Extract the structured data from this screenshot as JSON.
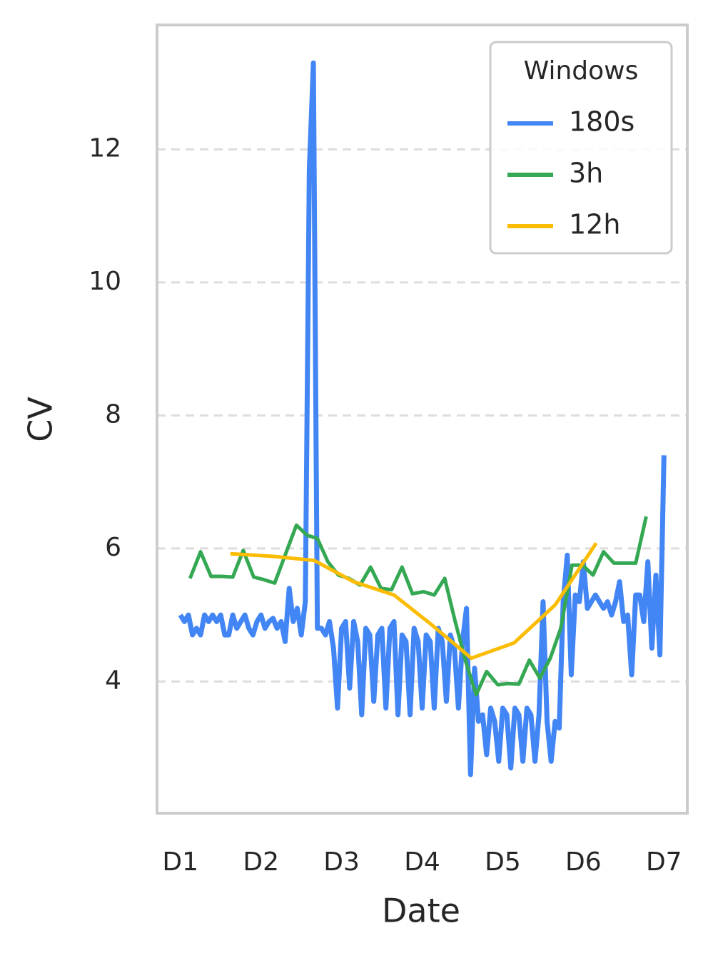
{
  "chart_data": {
    "type": "line",
    "xlabel": "Date",
    "ylabel": "CV",
    "legend_title": "Windows",
    "legend": "upper right",
    "grid": true,
    "xlim": [
      0.71,
      7.29
    ],
    "ylim": [
      2.02,
      13.87
    ],
    "xticks": [
      {
        "value": 1,
        "label": "D1"
      },
      {
        "value": 2,
        "label": "D2"
      },
      {
        "value": 3,
        "label": "D3"
      },
      {
        "value": 4,
        "label": "D4"
      },
      {
        "value": 5,
        "label": "D5"
      },
      {
        "value": 6,
        "label": "D6"
      },
      {
        "value": 7,
        "label": "D7"
      }
    ],
    "yticks": [
      4,
      6,
      8,
      10,
      12
    ],
    "series": [
      {
        "name": "180s",
        "color": "#4285f4",
        "width": 7,
        "x": [
          1.0,
          1.05,
          1.1,
          1.15,
          1.2,
          1.25,
          1.3,
          1.35,
          1.4,
          1.45,
          1.5,
          1.55,
          1.6,
          1.65,
          1.7,
          1.75,
          1.8,
          1.85,
          1.9,
          1.95,
          2.0,
          2.05,
          2.1,
          2.15,
          2.2,
          2.25,
          2.3,
          2.35,
          2.4,
          2.45,
          2.5,
          2.55,
          2.6,
          2.65,
          2.7,
          2.75,
          2.8,
          2.85,
          2.9,
          2.95,
          3.0,
          3.05,
          3.1,
          3.15,
          3.2,
          3.25,
          3.3,
          3.35,
          3.4,
          3.45,
          3.5,
          3.55,
          3.6,
          3.65,
          3.7,
          3.75,
          3.8,
          3.85,
          3.9,
          3.95,
          4.0,
          4.05,
          4.1,
          4.15,
          4.2,
          4.25,
          4.3,
          4.35,
          4.4,
          4.45,
          4.5,
          4.55,
          4.6,
          4.65,
          4.7,
          4.75,
          4.8,
          4.85,
          4.9,
          4.95,
          5.0,
          5.05,
          5.1,
          5.15,
          5.2,
          5.25,
          5.3,
          5.35,
          5.4,
          5.45,
          5.5,
          5.55,
          5.6,
          5.65,
          5.7,
          5.75,
          5.8,
          5.85,
          5.9,
          5.95,
          6.0,
          6.05,
          6.1,
          6.15,
          6.2,
          6.25,
          6.3,
          6.35,
          6.4,
          6.45,
          6.5,
          6.55,
          6.6,
          6.65,
          6.7,
          6.75,
          6.8,
          6.85,
          6.9,
          6.95,
          7.0
        ],
        "values": [
          5.0,
          4.9,
          5.0,
          4.7,
          4.8,
          4.7,
          5.0,
          4.9,
          5.0,
          4.9,
          5.0,
          4.7,
          4.7,
          5.0,
          4.8,
          4.9,
          5.0,
          4.8,
          4.7,
          4.9,
          5.0,
          4.8,
          4.9,
          4.95,
          4.8,
          4.9,
          4.6,
          5.4,
          4.9,
          5.1,
          4.7,
          5.2,
          11.7,
          13.3,
          4.8,
          4.8,
          4.7,
          4.9,
          4.5,
          3.6,
          4.8,
          4.9,
          3.9,
          4.9,
          4.6,
          3.5,
          4.8,
          4.7,
          3.7,
          4.7,
          4.8,
          3.6,
          4.8,
          4.9,
          3.5,
          4.7,
          4.6,
          3.5,
          4.8,
          4.6,
          3.6,
          4.7,
          4.6,
          3.6,
          4.8,
          4.6,
          3.7,
          4.7,
          4.5,
          3.6,
          4.6,
          5.1,
          2.6,
          4.2,
          3.4,
          3.5,
          2.9,
          3.6,
          3.4,
          2.8,
          3.6,
          3.5,
          2.7,
          3.6,
          3.5,
          2.8,
          3.6,
          3.5,
          2.8,
          3.5,
          5.2,
          3.4,
          2.8,
          3.4,
          3.3,
          5.2,
          5.9,
          4.1,
          5.3,
          5.2,
          5.8,
          5.1,
          5.2,
          5.3,
          5.2,
          5.1,
          5.2,
          5.0,
          5.2,
          5.5,
          4.9,
          5.0,
          4.1,
          5.3,
          5.3,
          4.9,
          5.8,
          4.5,
          5.6,
          4.4,
          7.4
        ]
      },
      {
        "name": "3h",
        "color": "#34a853",
        "width": 5,
        "x": [
          1.12,
          1.25,
          1.38,
          1.51,
          1.65,
          1.78,
          1.91,
          2.04,
          2.17,
          2.3,
          2.44,
          2.57,
          2.7,
          2.83,
          2.96,
          3.09,
          3.23,
          3.36,
          3.49,
          3.62,
          3.75,
          3.88,
          4.02,
          4.15,
          4.28,
          4.41,
          4.54,
          4.67,
          4.8,
          4.94,
          5.07,
          5.2,
          5.33,
          5.46,
          5.59,
          5.72,
          5.86,
          5.99,
          6.12,
          6.25,
          6.38,
          6.52,
          6.65,
          6.78
        ],
        "values": [
          5.55,
          5.95,
          5.58,
          5.58,
          5.57,
          5.97,
          5.57,
          5.53,
          5.48,
          5.9,
          6.35,
          6.2,
          6.15,
          5.8,
          5.6,
          5.55,
          5.45,
          5.72,
          5.4,
          5.38,
          5.72,
          5.32,
          5.35,
          5.3,
          5.55,
          4.9,
          4.3,
          3.8,
          4.15,
          3.95,
          3.97,
          3.96,
          4.32,
          4.05,
          4.35,
          4.8,
          5.75,
          5.75,
          5.6,
          5.95,
          5.78,
          5.78,
          5.78,
          6.48
        ]
      },
      {
        "name": "12h",
        "color": "#fbbc04",
        "width": 5,
        "x": [
          1.62,
          2.17,
          2.66,
          3.15,
          3.65,
          4.12,
          4.61,
          5.14,
          5.65,
          6.16
        ],
        "values": [
          5.92,
          5.88,
          5.82,
          5.5,
          5.3,
          4.85,
          4.35,
          4.58,
          5.15,
          6.08
        ]
      }
    ]
  }
}
